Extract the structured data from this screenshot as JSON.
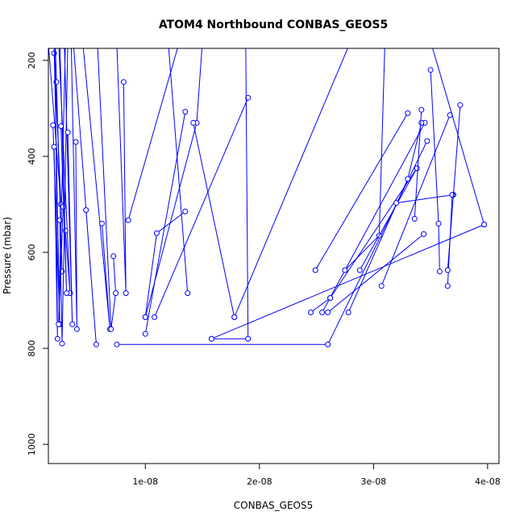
{
  "chart_data": {
    "type": "line",
    "title": "ATOM4 Northbound CONBAS_GEOS5",
    "xlabel": "CONBAS_GEOS5",
    "ylabel": "Pressure (mbar)",
    "xlim": [
      1.5e-09,
      4.1e-08
    ],
    "ylim": [
      1040,
      175
    ],
    "y_reversed": true,
    "xticks": [
      {
        "value": 1e-08,
        "label": "1e-08"
      },
      {
        "value": 2e-08,
        "label": "2e-08"
      },
      {
        "value": 3e-08,
        "label": "3e-08"
      },
      {
        "value": 4e-08,
        "label": "4e-08"
      }
    ],
    "yticks": [
      {
        "value": 200,
        "label": "200"
      },
      {
        "value": 400,
        "label": "400"
      },
      {
        "value": 600,
        "label": "600"
      },
      {
        "value": 800,
        "label": "800"
      },
      {
        "value": 1000,
        "label": "1000"
      }
    ],
    "grid": false,
    "legend": "none",
    "series_color": "#0000ff",
    "marker": "open-circle",
    "series": [
      {
        "x": [
          2e-09,
          2.6e-09,
          1.5e-09
        ],
        "y": [
          185,
          500,
          165
        ]
      },
      {
        "x": [
          2.2e-09,
          2.7e-09,
          2.1e-09
        ],
        "y": [
          245,
          640,
          160
        ]
      },
      {
        "x": [
          1.9e-09,
          2.5e-09,
          2e-09
        ],
        "y": [
          335,
          750,
          165
        ]
      },
      {
        "x": [
          2e-09,
          2.3e-09,
          2.1e-09
        ],
        "y": [
          380,
          780,
          160
        ]
      },
      {
        "x": [
          2.5e-09,
          2.7e-09,
          3.2e-09
        ],
        "y": [
          533,
          790,
          165
        ]
      },
      {
        "x": [
          3e-09,
          3.4e-09,
          2.4e-09
        ],
        "y": [
          555,
          685,
          160
        ]
      },
      {
        "x": [
          2.8e-09,
          2.4e-09,
          3e-09
        ],
        "y": [
          505,
          750,
          165
        ]
      },
      {
        "x": [
          2.6e-09,
          3.1e-09,
          2.5e-09
        ],
        "y": [
          337,
          685,
          160
        ]
      },
      {
        "x": [
          3.2e-09,
          3.6e-09,
          2.9e-09
        ],
        "y": [
          350,
          750,
          165
        ]
      },
      {
        "x": [
          3.9e-09,
          4e-09,
          3.5e-09
        ],
        "y": [
          370,
          760,
          160
        ]
      },
      {
        "x": [
          4.8e-09,
          5.7e-09,
          3.7e-09
        ],
        "y": [
          512,
          792,
          165
        ]
      },
      {
        "x": [
          6.2e-09,
          6.9e-09,
          4.5e-09
        ],
        "y": [
          540,
          760,
          160
        ]
      },
      {
        "x": [
          7.2e-09,
          7.4e-09,
          7e-09,
          5.8e-09
        ],
        "y": [
          608,
          685,
          760,
          165
        ]
      },
      {
        "x": [
          8.1e-09,
          8.3e-09,
          7.5e-09
        ],
        "y": [
          245,
          685,
          165
        ]
      },
      {
        "x": [
          7.5e-09,
          2.6e-08
        ],
        "y": [
          792,
          792
        ]
      },
      {
        "x": [
          8.5e-09,
          1.3e-08
        ],
        "y": [
          533,
          160
        ]
      },
      {
        "x": [
          1e-08,
          1.35e-08
        ],
        "y": [
          770,
          307
        ]
      },
      {
        "x": [
          1e-08,
          1.1e-08,
          1.35e-08
        ],
        "y": [
          735,
          560,
          515
        ]
      },
      {
        "x": [
          1.08e-08,
          1.9e-08
        ],
        "y": [
          735,
          278
        ]
      },
      {
        "x": [
          1e-08,
          1.45e-08,
          1.5e-08
        ],
        "y": [
          735,
          330,
          160
        ]
      },
      {
        "x": [
          1.37e-08,
          1.2e-08
        ],
        "y": [
          685,
          160
        ]
      },
      {
        "x": [
          1.78e-08,
          1.42e-08
        ],
        "y": [
          735,
          330
        ]
      },
      {
        "x": [
          1.58e-08,
          1.9e-08
        ],
        "y": [
          780,
          780
        ]
      },
      {
        "x": [
          1.9e-08,
          1.88e-08
        ],
        "y": [
          780,
          160
        ]
      },
      {
        "x": [
          1.78e-08,
          2.8e-08
        ],
        "y": [
          735,
          160
        ]
      },
      {
        "x": [
          1.58e-08,
          3.97e-08
        ],
        "y": [
          780,
          542
        ]
      },
      {
        "x": [
          2.45e-08,
          2.62e-08
        ],
        "y": [
          725,
          695
        ]
      },
      {
        "x": [
          2.49e-08,
          3.3e-08
        ],
        "y": [
          637,
          310
        ]
      },
      {
        "x": [
          2.55e-08,
          3.45e-08
        ],
        "y": [
          725,
          330
        ]
      },
      {
        "x": [
          2.6e-08,
          3.47e-08
        ],
        "y": [
          792,
          368
        ]
      },
      {
        "x": [
          2.62e-08,
          3.38e-08
        ],
        "y": [
          695,
          425
        ]
      },
      {
        "x": [
          2.75e-08,
          3.05e-08,
          3.1e-08
        ],
        "y": [
          637,
          565,
          160
        ]
      },
      {
        "x": [
          2.78e-08,
          3.3e-08,
          3.42e-08
        ],
        "y": [
          725,
          447,
          330
        ]
      },
      {
        "x": [
          2.88e-08,
          3.38e-08
        ],
        "y": [
          637,
          425
        ]
      },
      {
        "x": [
          3.07e-08,
          3.67e-08
        ],
        "y": [
          670,
          314
        ]
      },
      {
        "x": [
          3.2e-08,
          3.7e-08
        ],
        "y": [
          497,
          480
        ]
      },
      {
        "x": [
          3.36e-08,
          3.42e-08
        ],
        "y": [
          530,
          303
        ]
      },
      {
        "x": [
          3.5e-08,
          3.57e-08,
          3.58e-08
        ],
        "y": [
          220,
          540,
          640
        ]
      },
      {
        "x": [
          3.65e-08,
          3.69e-08
        ],
        "y": [
          670,
          480
        ]
      },
      {
        "x": [
          3.65e-08,
          3.76e-08
        ],
        "y": [
          637,
          293
        ]
      },
      {
        "x": [
          3.97e-08,
          3.5e-08
        ],
        "y": [
          542,
          160
        ]
      },
      {
        "x": [
          3.44e-08,
          2.6e-08
        ],
        "y": [
          562,
          725
        ]
      }
    ]
  }
}
